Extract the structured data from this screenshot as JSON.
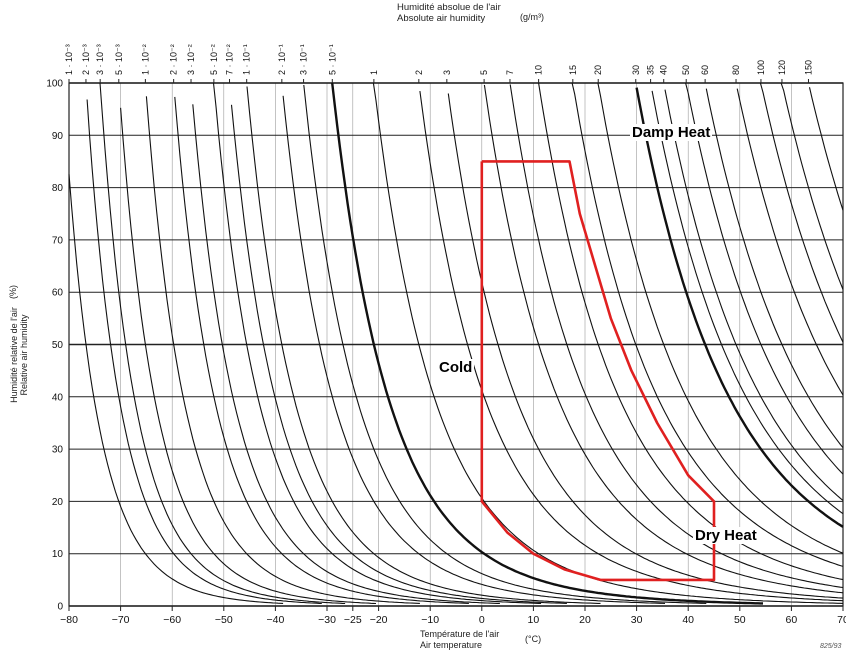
{
  "chart_data": {
    "type": "line",
    "title": "",
    "top_axis": {
      "title_fr": "Humidité absolue de l'air",
      "title_en": "Absolute air humidity",
      "unit": "(g/m³)",
      "labels": [
        "1 · 10⁻³",
        "2 · 10⁻³",
        "3 · 10⁻³",
        "5 · 10⁻³",
        "1 · 10⁻²",
        "2 · 10⁻²",
        "3 · 10⁻²",
        "5 · 10⁻²",
        "7 · 10⁻²",
        "1 · 10⁻¹",
        "2 · 10⁻¹",
        "3 · 10⁻¹",
        "5 · 10⁻¹",
        "1",
        "2",
        "3",
        "5",
        "7",
        "10",
        "15",
        "20",
        "30",
        "35",
        "40",
        "50",
        "60",
        "80",
        "100",
        "120",
        "150"
      ],
      "values": [
        0.001,
        0.002,
        0.003,
        0.005,
        0.01,
        0.02,
        0.03,
        0.05,
        0.07,
        0.1,
        0.2,
        0.3,
        0.5,
        1,
        2,
        3,
        5,
        7,
        10,
        15,
        20,
        30,
        35,
        40,
        50,
        60,
        80,
        100,
        120,
        150
      ]
    },
    "xlabel_fr": "Température de l'air",
    "xlabel_en": "Air temperature",
    "xunit": "(°C)",
    "xlim": [
      -80,
      70
    ],
    "xticks": [
      -80,
      -70,
      -60,
      -50,
      -40,
      -30,
      -25,
      -20,
      -10,
      0,
      10,
      20,
      30,
      40,
      50,
      60,
      70
    ],
    "xtick_labels": [
      "−80",
      "−70",
      "−60",
      "−50",
      "−40",
      "−30",
      "−25",
      "−20",
      "−10",
      "0",
      "10",
      "20",
      "30",
      "40",
      "50",
      "60",
      "70"
    ],
    "ylabel_fr": "Humidité relative de l'air",
    "ylabel_en": "Relative air humidity",
    "yunit": "(%)",
    "ylim": [
      0,
      100
    ],
    "yticks": [
      0,
      10,
      20,
      30,
      40,
      50,
      60,
      70,
      80,
      90,
      100
    ],
    "ytick_labels": [
      "0",
      "10",
      "20",
      "30",
      "40",
      "50",
      "60",
      "70",
      "80",
      "90",
      "100"
    ],
    "grid": true,
    "bold_curves": [
      0.5,
      30
    ],
    "envelope": {
      "color": "#e02020",
      "points": [
        [
          0,
          85
        ],
        [
          17,
          85
        ],
        [
          19,
          75
        ],
        [
          22,
          65
        ],
        [
          25,
          55
        ],
        [
          29,
          45
        ],
        [
          34,
          35
        ],
        [
          40,
          25
        ],
        [
          45,
          20
        ],
        [
          45,
          5
        ],
        [
          23,
          5
        ],
        [
          16,
          7
        ],
        [
          10,
          10
        ],
        [
          5,
          14
        ],
        [
          0,
          20
        ],
        [
          0,
          85
        ]
      ]
    },
    "regions": [
      "Damp Heat",
      "Cold",
      "Dry Heat"
    ]
  },
  "corner_code": "825/93"
}
